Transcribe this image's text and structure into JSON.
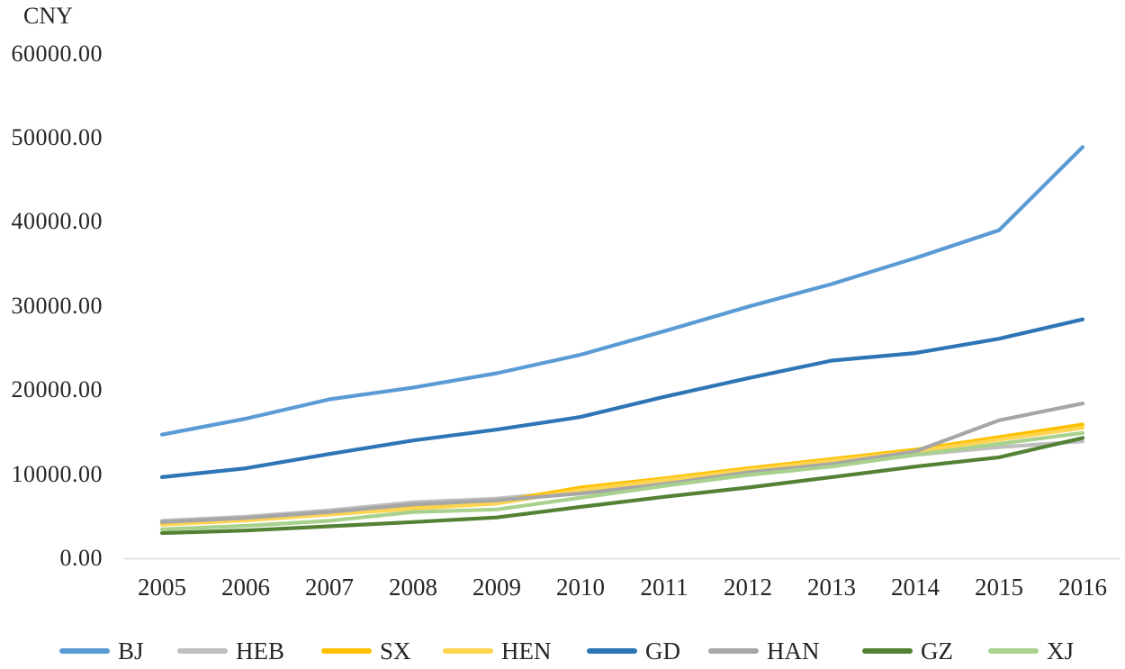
{
  "chart": {
    "unit": "CNY"
  },
  "chart_data": {
    "type": "line",
    "title": "",
    "unit_label": "CNY",
    "xlabel": "",
    "ylabel": "CNY",
    "x": [
      2005,
      2006,
      2007,
      2008,
      2009,
      2010,
      2011,
      2012,
      2013,
      2014,
      2015,
      2016
    ],
    "ylim": [
      0,
      60000
    ],
    "y_tick_interval": 10000,
    "y_tick_labels": [
      "0.00",
      "10000.00",
      "20000.00",
      "30000.00",
      "40000.00",
      "50000.00",
      "60000.00"
    ],
    "grid": false,
    "legend_position": "bottom",
    "axis_line_color": "#d9d9d9",
    "series": [
      {
        "name": "BJ",
        "color": "#5B9BD5",
        "values": [
          14700,
          16600,
          18900,
          20300,
          22000,
          24200,
          27000,
          29900,
          32600,
          35700,
          39000,
          48900
        ]
      },
      {
        "name": "HEB",
        "color": "#BFBFBF",
        "values": [
          4450,
          4950,
          5700,
          6650,
          7100,
          8000,
          9000,
          10000,
          11000,
          12300,
          13200,
          13900
        ]
      },
      {
        "name": "SX",
        "color": "#FFC000",
        "values": [
          4200,
          4700,
          5400,
          6100,
          6700,
          8400,
          9500,
          10700,
          11800,
          12900,
          14400,
          15900
        ]
      },
      {
        "name": "HEN",
        "color": "#FFD451",
        "values": [
          4000,
          4500,
          5200,
          5900,
          6500,
          8100,
          9300,
          10500,
          11600,
          12700,
          14100,
          15500
        ]
      },
      {
        "name": "GD",
        "color": "#2E75B6",
        "values": [
          9650,
          10700,
          12400,
          14000,
          15300,
          16800,
          19200,
          21400,
          23500,
          24400,
          26100,
          28400
        ]
      },
      {
        "name": "HAN",
        "color": "#A6A6A6",
        "values": [
          4300,
          4800,
          5500,
          6400,
          6900,
          7700,
          8800,
          10200,
          11200,
          12700,
          16400,
          18400
        ]
      },
      {
        "name": "GZ",
        "color": "#548235",
        "values": [
          3000,
          3300,
          3800,
          4300,
          4850,
          6100,
          7300,
          8400,
          9650,
          10900,
          12000,
          14300
        ]
      },
      {
        "name": "XJ",
        "color": "#A9D18E",
        "values": [
          3450,
          3850,
          4450,
          5500,
          5800,
          7200,
          8600,
          9900,
          10900,
          12300,
          13600,
          14900
        ]
      }
    ]
  }
}
